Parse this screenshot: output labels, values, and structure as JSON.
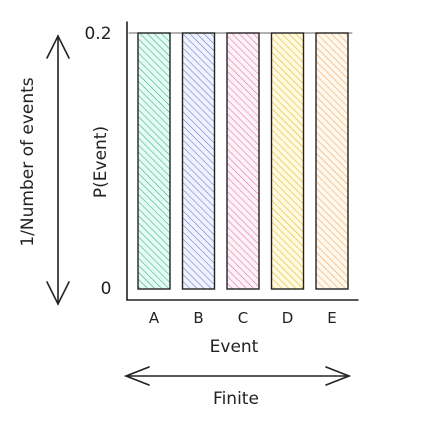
{
  "chart_data": {
    "type": "bar",
    "categories": [
      "A",
      "B",
      "C",
      "D",
      "E"
    ],
    "values": [
      0.2,
      0.2,
      0.2,
      0.2,
      0.2
    ],
    "ylim": [
      0,
      0.2
    ],
    "yticks": [
      "0",
      "0.2"
    ],
    "ylabel": "P(Event)",
    "xlabel": "Event",
    "grid": false,
    "bar_colors": [
      "#3fb585",
      "#6f7fd6",
      "#e07aa0",
      "#f0b030",
      "#f2a560"
    ],
    "annotations": {
      "vertical_arrow_label": "1/Number of events",
      "horizontal_arrow_label": "Finite"
    }
  }
}
